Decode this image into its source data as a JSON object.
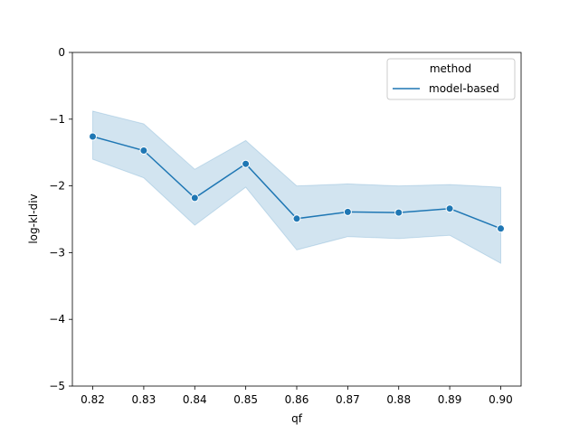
{
  "chart_data": {
    "type": "line",
    "xlabel": "qf",
    "ylabel": "log-kl-div",
    "xlim": [
      0.816,
      0.904
    ],
    "ylim": [
      -5,
      0
    ],
    "x_ticks": [
      "0.82",
      "0.83",
      "0.84",
      "0.85",
      "0.86",
      "0.87",
      "0.88",
      "0.89",
      "0.90"
    ],
    "y_ticks": [
      "0",
      "−1",
      "−2",
      "−3",
      "−4",
      "−5"
    ],
    "y_tick_values": [
      0,
      -1,
      -2,
      -3,
      -4,
      -5
    ],
    "legend": {
      "title": "method",
      "placement": "top-right"
    },
    "grid": false,
    "series": [
      {
        "name": "model-based",
        "color": "#1f77b4",
        "band_color": "#1f77b4",
        "marker": "circle",
        "x": [
          0.82,
          0.83,
          0.84,
          0.85,
          0.86,
          0.87,
          0.88,
          0.89,
          0.9
        ],
        "y": [
          -1.26,
          -1.47,
          -2.18,
          -1.67,
          -2.49,
          -2.39,
          -2.4,
          -2.34,
          -2.64
        ],
        "ci_low": [
          -1.6,
          -1.88,
          -2.59,
          -2.02,
          -2.96,
          -2.76,
          -2.79,
          -2.74,
          -3.16
        ],
        "ci_high": [
          -0.88,
          -1.07,
          -1.75,
          -1.32,
          -2.0,
          -1.97,
          -2.0,
          -1.98,
          -2.02
        ]
      }
    ]
  }
}
